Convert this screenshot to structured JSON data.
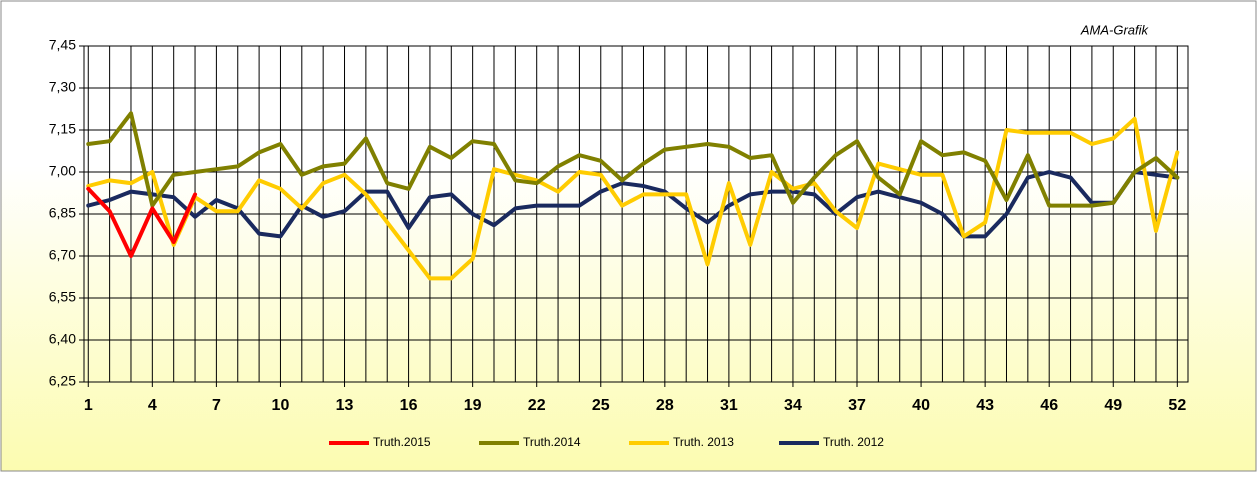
{
  "chart_data": {
    "type": "line",
    "annotation": "AMA-Grafik",
    "x": [
      1,
      2,
      3,
      4,
      5,
      6,
      7,
      8,
      9,
      10,
      11,
      12,
      13,
      14,
      15,
      16,
      17,
      18,
      19,
      20,
      21,
      22,
      23,
      24,
      25,
      26,
      27,
      28,
      29,
      30,
      31,
      32,
      33,
      34,
      35,
      36,
      37,
      38,
      39,
      40,
      41,
      42,
      43,
      44,
      45,
      46,
      47,
      48,
      49,
      50,
      51,
      52
    ],
    "xlim": [
      0.8,
      52.5
    ],
    "xticks": [
      1,
      4,
      7,
      10,
      13,
      16,
      19,
      22,
      25,
      28,
      31,
      34,
      37,
      40,
      43,
      46,
      49,
      52
    ],
    "ylim": [
      6.25,
      7.45
    ],
    "yticks": [
      {
        "value": 6.25,
        "label": "6,25"
      },
      {
        "value": 6.4,
        "label": "6,40"
      },
      {
        "value": 6.55,
        "label": "6,55"
      },
      {
        "value": 6.7,
        "label": "6,70"
      },
      {
        "value": 6.85,
        "label": "6,85"
      },
      {
        "value": 7.0,
        "label": "7,00"
      },
      {
        "value": 7.15,
        "label": "7,15"
      },
      {
        "value": 7.3,
        "label": "7,30"
      },
      {
        "value": 7.45,
        "label": "7,45"
      }
    ],
    "grid": true,
    "legend": "bottom",
    "series": [
      {
        "name": "Truth.2015",
        "color": "#ff0000",
        "values": [
          6.94,
          6.86,
          6.7,
          6.87,
          6.75,
          6.92,
          null,
          null,
          null,
          null,
          null,
          null,
          null,
          null,
          null,
          null,
          null,
          null,
          null,
          null,
          null,
          null,
          null,
          null,
          null,
          null,
          null,
          null,
          null,
          null,
          null,
          null,
          null,
          null,
          null,
          null,
          null,
          null,
          null,
          null,
          null,
          null,
          null,
          null,
          null,
          null,
          null,
          null,
          null,
          null,
          null,
          null
        ]
      },
      {
        "name": "Truth.2014",
        "color": "#808000",
        "values": [
          7.1,
          7.11,
          7.21,
          6.88,
          6.99,
          7.0,
          7.01,
          7.02,
          7.07,
          7.1,
          6.99,
          7.02,
          7.03,
          7.12,
          6.96,
          6.94,
          7.09,
          7.05,
          7.11,
          7.1,
          6.97,
          6.96,
          7.02,
          7.06,
          7.04,
          6.97,
          7.03,
          7.08,
          7.09,
          7.1,
          7.09,
          7.05,
          7.06,
          6.89,
          6.98,
          7.06,
          7.11,
          6.98,
          6.92,
          7.11,
          7.06,
          7.07,
          7.04,
          6.9,
          7.06,
          6.88,
          6.88,
          6.88,
          6.89,
          7.0,
          7.05,
          6.98
        ]
      },
      {
        "name": "Truth. 2013",
        "color": "#ffcc00",
        "values": [
          6.95,
          6.97,
          6.96,
          7.0,
          6.74,
          6.91,
          6.86,
          6.86,
          6.97,
          6.94,
          6.87,
          6.96,
          6.99,
          6.92,
          6.82,
          6.72,
          6.62,
          6.62,
          6.69,
          7.01,
          6.99,
          6.97,
          6.93,
          7.0,
          6.99,
          6.88,
          6.92,
          6.92,
          6.92,
          6.67,
          6.96,
          6.74,
          7.0,
          6.94,
          6.96,
          6.86,
          6.8,
          7.03,
          7.01,
          6.99,
          6.99,
          6.77,
          6.82,
          7.15,
          7.14,
          7.14,
          7.14,
          7.1,
          7.12,
          7.19,
          6.79,
          7.07
        ]
      },
      {
        "name": "Truth. 2012",
        "color": "#1a2a5e",
        "values": [
          6.88,
          6.9,
          6.93,
          6.92,
          6.91,
          6.84,
          6.9,
          6.87,
          6.78,
          6.77,
          6.88,
          6.84,
          6.86,
          6.93,
          6.93,
          6.8,
          6.91,
          6.92,
          6.85,
          6.81,
          6.87,
          6.88,
          6.88,
          6.88,
          6.93,
          6.96,
          6.95,
          6.93,
          6.87,
          6.82,
          6.88,
          6.92,
          6.93,
          6.93,
          6.92,
          6.85,
          6.91,
          6.93,
          6.91,
          6.89,
          6.85,
          6.77,
          6.77,
          6.85,
          6.98,
          7.0,
          6.98,
          6.89,
          6.89,
          7.0,
          6.99,
          6.98
        ]
      }
    ]
  }
}
